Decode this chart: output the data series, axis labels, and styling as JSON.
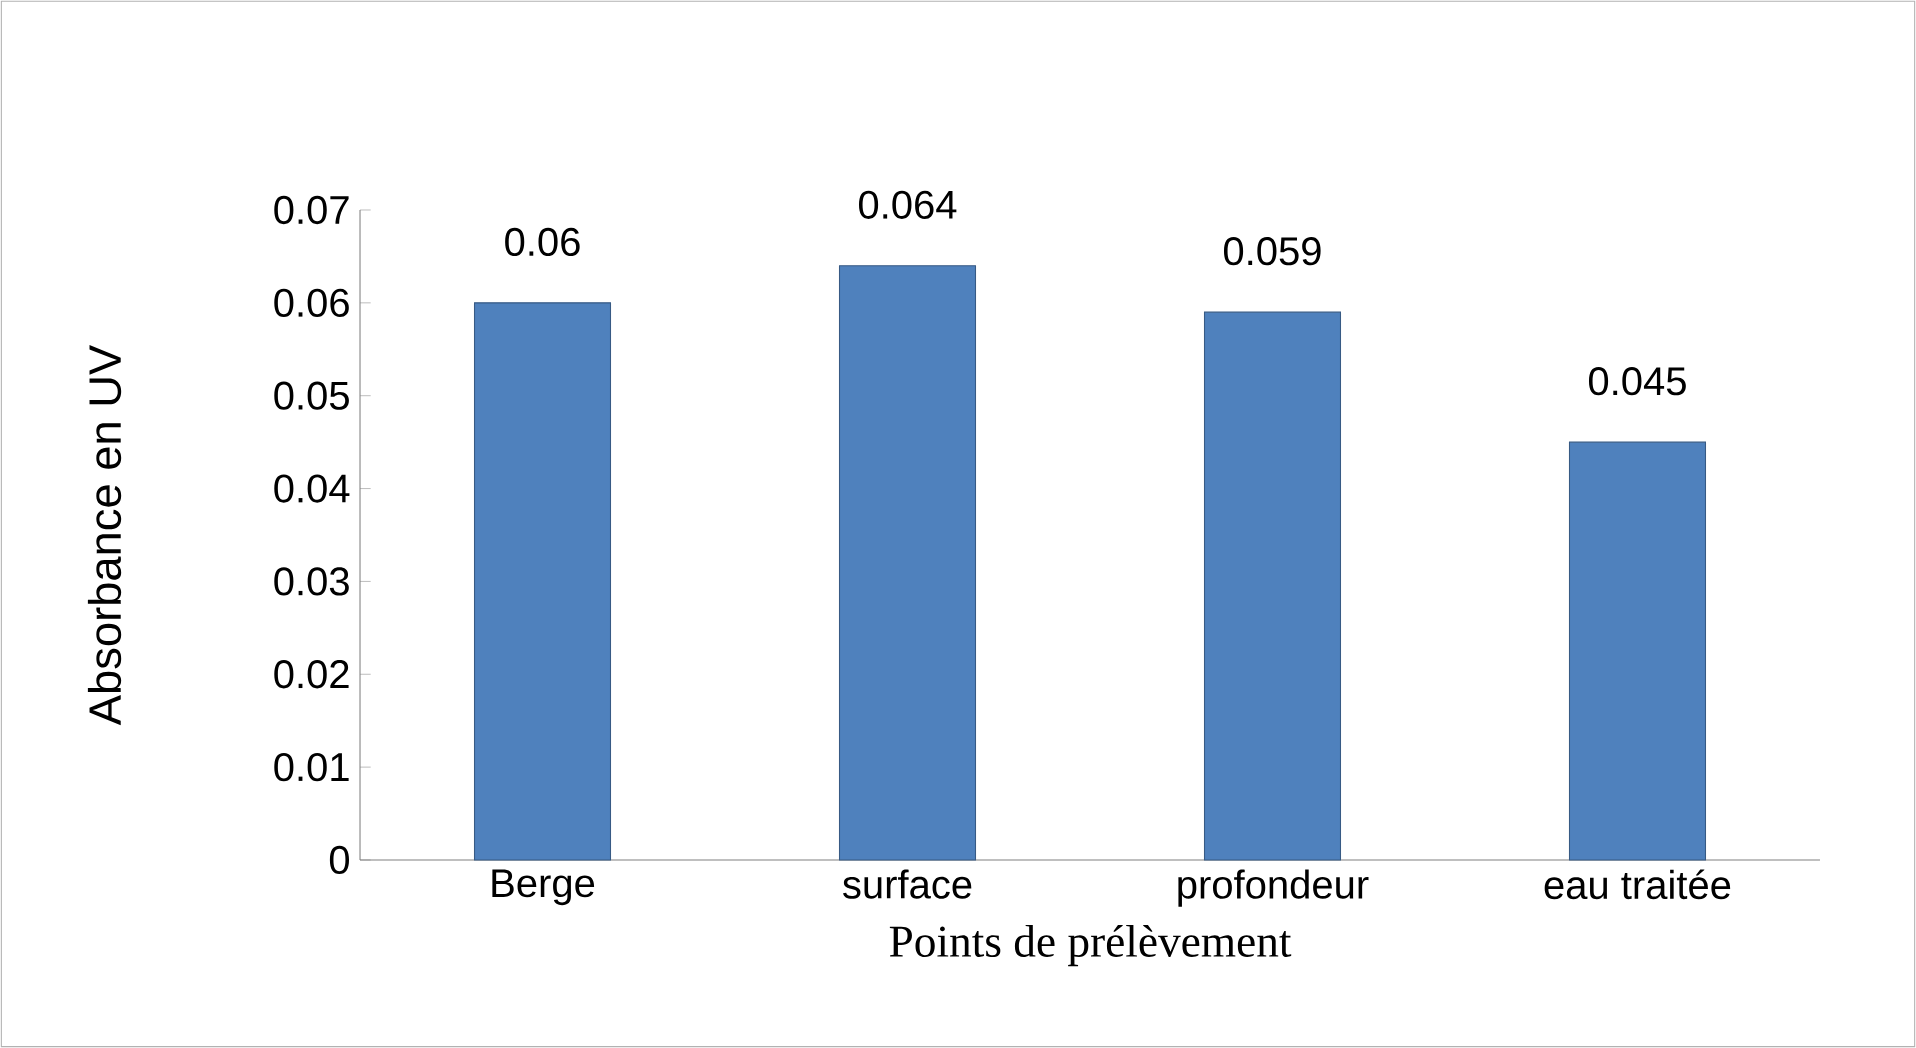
{
  "chart_data": {
    "type": "bar",
    "categories": [
      "Berge",
      "surface",
      "profondeur",
      "eau traitée"
    ],
    "values": [
      0.06,
      0.064,
      0.059,
      0.045
    ],
    "color": "#4f81bd",
    "ylim": [
      0,
      0.07
    ],
    "yticks": [
      0,
      0.01,
      0.02,
      0.03,
      0.04,
      0.05,
      0.06,
      0.07
    ],
    "ylabel": "Absorbance en UV",
    "xlabel": "Points de prélèvement",
    "data_labels": true
  }
}
